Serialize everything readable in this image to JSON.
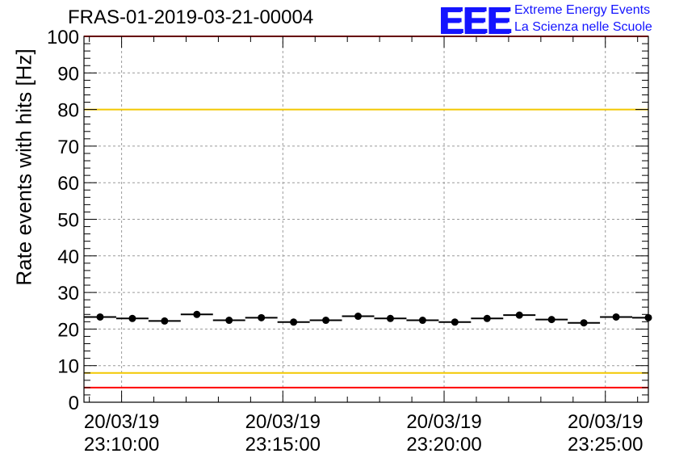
{
  "header": {
    "title": "FRAS-01-2019-03-21-00004"
  },
  "logo": {
    "mark": "EEE",
    "line1": "Extreme Energy Events",
    "line2": "La Scienza nelle Scuole",
    "color": "#1414ff"
  },
  "chart_data": {
    "type": "scatter",
    "title": "FRAS-01-2019-03-21-00004",
    "xlabel": "",
    "ylabel": "Rate events with hits [Hz]",
    "ylim": [
      0,
      100
    ],
    "yticks": [
      0,
      10,
      20,
      30,
      40,
      50,
      60,
      70,
      80,
      90,
      100
    ],
    "xlim": [
      "23:08:50",
      "23:26:20"
    ],
    "xticks": [
      {
        "time": "23:10:00",
        "label_date": "20/03/19",
        "label_time": "23:10:00"
      },
      {
        "time": "23:15:00",
        "label_date": "20/03/19",
        "label_time": "23:15:00"
      },
      {
        "time": "23:20:00",
        "label_date": "20/03/19",
        "label_time": "23:20:00"
      },
      {
        "time": "23:25:00",
        "label_date": "20/03/19",
        "label_time": "23:25:00"
      }
    ],
    "bin_width_seconds": 60,
    "grid": true,
    "reference_lines": [
      {
        "y": 80,
        "color": "#f2c800"
      },
      {
        "y": 8,
        "color": "#f2c800"
      },
      {
        "y": 100,
        "color": "#ff0000"
      },
      {
        "y": 4,
        "color": "#ff0000"
      }
    ],
    "series": [
      {
        "color": "#000000",
        "x": [
          "23:09:20",
          "23:10:20",
          "23:11:20",
          "23:12:20",
          "23:13:20",
          "23:14:20",
          "23:15:20",
          "23:16:20",
          "23:17:20",
          "23:18:20",
          "23:19:20",
          "23:20:20",
          "23:21:20",
          "23:22:20",
          "23:23:20",
          "23:24:20",
          "23:25:20",
          "23:26:20"
        ],
        "y": [
          23.3,
          22.9,
          22.2,
          24.0,
          22.4,
          23.1,
          21.9,
          22.4,
          23.5,
          22.9,
          22.4,
          21.9,
          22.9,
          23.8,
          22.6,
          21.7,
          23.3,
          23.1
        ]
      }
    ]
  }
}
